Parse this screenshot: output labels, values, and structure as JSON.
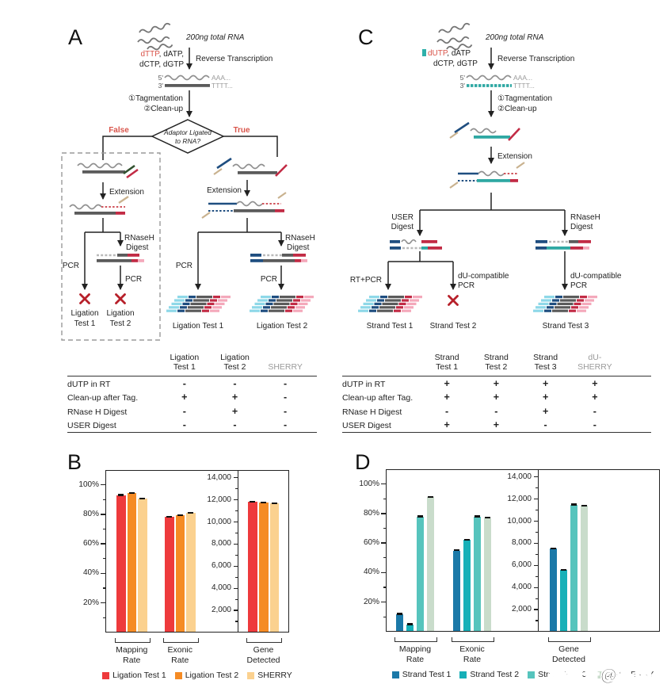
{
  "panel_a": {
    "letter": "A",
    "rna_input": "200ng total RNA",
    "ntp_red": "dTTP",
    "ntp_rest": ", dATP,",
    "ntp_line2": "dCTP, dGTP",
    "reverse_transcription": "Reverse Transcription",
    "five_prime": "5'",
    "three_prime": "3'",
    "aaa": "AAA...",
    "tttt": "TTTT...",
    "tagmentation": "①Tagmentation",
    "cleanup": "②Clean-up",
    "diamond_l1": "Adaptor Ligated",
    "diamond_l2": "to RNA?",
    "branch_false": "False",
    "branch_true": "True",
    "extension": "Extension",
    "rnaseh_l1": "RNaseH",
    "rnaseh_l2": "Digest",
    "pcr": "PCR",
    "fail1_l1": "Ligation",
    "fail1_l2": "Test 1",
    "fail2_l1": "Ligation",
    "fail2_l2": "Test 2",
    "test1": "Ligation Test 1",
    "test2": "Ligation Test 2"
  },
  "panel_c": {
    "letter": "C",
    "rna_input": "200ng total RNA",
    "ntp_red": "dUTP",
    "ntp_rest": ", dATP",
    "ntp_line2": "dCTP, dGTP",
    "reverse_transcription": "Reverse Transcription",
    "five_prime": "5'",
    "three_prime": "3'",
    "aaa": "AAA...",
    "tttt": "TTTT...",
    "tagmentation": "①Tagmentation",
    "cleanup": "②Clean-up",
    "extension": "Extension",
    "user_l1": "USER",
    "user_l2": "Digest",
    "rnaseh_l1": "RNaseH",
    "rnaseh_l2": "Digest",
    "rtpcr": "RT+PCR",
    "du_pcr_l1": "dU-compatible",
    "du_pcr_l2": "PCR",
    "test1": "Strand Test 1",
    "test2": "Strand Test 2",
    "test3": "Strand Test 3"
  },
  "table_a": {
    "columns": [
      [
        "Ligation",
        "Test 1"
      ],
      [
        "Ligation",
        "Test 2"
      ],
      [
        "SHERRY"
      ]
    ],
    "muted_columns": [
      2
    ],
    "rows": [
      {
        "label": "dUTP in RT",
        "values": [
          "-",
          "-",
          "-"
        ]
      },
      {
        "label": "Clean-up after Tag.",
        "values": [
          "+",
          "+",
          "-"
        ]
      },
      {
        "label": "RNase H Digest",
        "values": [
          "-",
          "+",
          "-"
        ]
      },
      {
        "label": "USER Digest",
        "values": [
          "-",
          "-",
          "-"
        ]
      }
    ]
  },
  "table_c": {
    "columns": [
      [
        "Strand",
        "Test 1"
      ],
      [
        "Strand",
        "Test 2"
      ],
      [
        "Strand",
        "Test 3"
      ],
      [
        "dU-",
        "SHERRY"
      ]
    ],
    "muted_columns": [
      3
    ],
    "rows": [
      {
        "label": "dUTP in RT",
        "values": [
          "+",
          "+",
          "+",
          "+"
        ]
      },
      {
        "label": "Clean-up after Tag.",
        "values": [
          "+",
          "+",
          "+",
          "+"
        ]
      },
      {
        "label": "RNase H Digest",
        "values": [
          "-",
          "-",
          "+",
          "-"
        ]
      },
      {
        "label": "USER Digest",
        "values": [
          "+",
          "+",
          "-",
          "-"
        ]
      }
    ]
  },
  "chart_data": [
    {
      "panel": "B",
      "type": "bar",
      "grid": false,
      "legend_position": "bottom",
      "series": [
        {
          "name": "Ligation Test 1",
          "color": "#ee3a3c"
        },
        {
          "name": "Ligation Test 2",
          "color": "#f58b24"
        },
        {
          "name": "SHERRY",
          "color": "#fbd18f"
        }
      ],
      "groups": [
        {
          "label": [
            "Mapping",
            "Rate"
          ],
          "axis": "percent",
          "values": [
            93,
            94.5,
            90.5
          ]
        },
        {
          "label": [
            "Exonic",
            "Rate"
          ],
          "axis": "percent",
          "values": [
            78.5,
            79.5,
            81
          ]
        },
        {
          "label": [
            "Gene",
            "Detected"
          ],
          "axis": "count",
          "values": [
            11800,
            11750,
            11700
          ]
        }
      ],
      "percent_axis": {
        "min": 0,
        "max": 110,
        "unit": "%",
        "major_ticks": [
          100,
          80,
          60,
          40,
          20
        ],
        "major_labels": [
          "100%",
          "80%",
          "60%",
          "40%",
          "20%"
        ],
        "minor_ticks": [
          90,
          70,
          50,
          30,
          10
        ]
      },
      "count_axis": {
        "min": 0,
        "max": 14700,
        "major_ticks": [
          14000,
          12000,
          10000,
          8000,
          6000,
          4000,
          2000
        ],
        "major_labels": [
          "14,000",
          "12,000",
          "10,000",
          "8,000",
          "6,000",
          "4,000",
          "2,000"
        ],
        "minor_ticks": [
          13000,
          11000,
          9000,
          7000,
          5000,
          3000,
          1000
        ]
      },
      "error_caps": true
    },
    {
      "panel": "D",
      "type": "bar",
      "grid": false,
      "legend_position": "bottom",
      "series": [
        {
          "name": "Strand Test 1",
          "color": "#1b79a8"
        },
        {
          "name": "Strand Test 2",
          "color": "#17b0b8"
        },
        {
          "name": "Strand Test 3",
          "color": "#56c4bd"
        },
        {
          "name": "dU-SHERRY",
          "color": "#c9dccb"
        }
      ],
      "groups": [
        {
          "label": [
            "Mapping",
            "Rate"
          ],
          "axis": "percent",
          "values": [
            12,
            5,
            78,
            91
          ]
        },
        {
          "label": [
            "Exonic",
            "Rate"
          ],
          "axis": "percent",
          "values": [
            55,
            62,
            78,
            77
          ]
        },
        {
          "label": [
            "Gene",
            "Detected"
          ],
          "axis": "count",
          "values": [
            7500,
            5600,
            11500,
            11400
          ]
        }
      ],
      "percent_axis": {
        "min": 0,
        "max": 110,
        "unit": "%",
        "major_ticks": [
          100,
          80,
          60,
          40,
          20
        ],
        "major_labels": [
          "100%",
          "80%",
          "60%",
          "40%",
          "20%"
        ],
        "minor_ticks": [
          90,
          70,
          50,
          30,
          10
        ]
      },
      "count_axis": {
        "min": 0,
        "max": 14700,
        "major_ticks": [
          14000,
          12000,
          10000,
          8000,
          6000,
          4000,
          2000
        ],
        "major_labels": [
          "14,000",
          "12,000",
          "10,000",
          "8,000",
          "6,000",
          "4,000",
          "2,000"
        ],
        "minor_ticks": [
          13000,
          11000,
          9000,
          7000,
          5000,
          3000,
          1000
        ]
      },
      "error_caps": true
    }
  ],
  "watermark": {
    "text": "搜狐号@基因狐"
  }
}
